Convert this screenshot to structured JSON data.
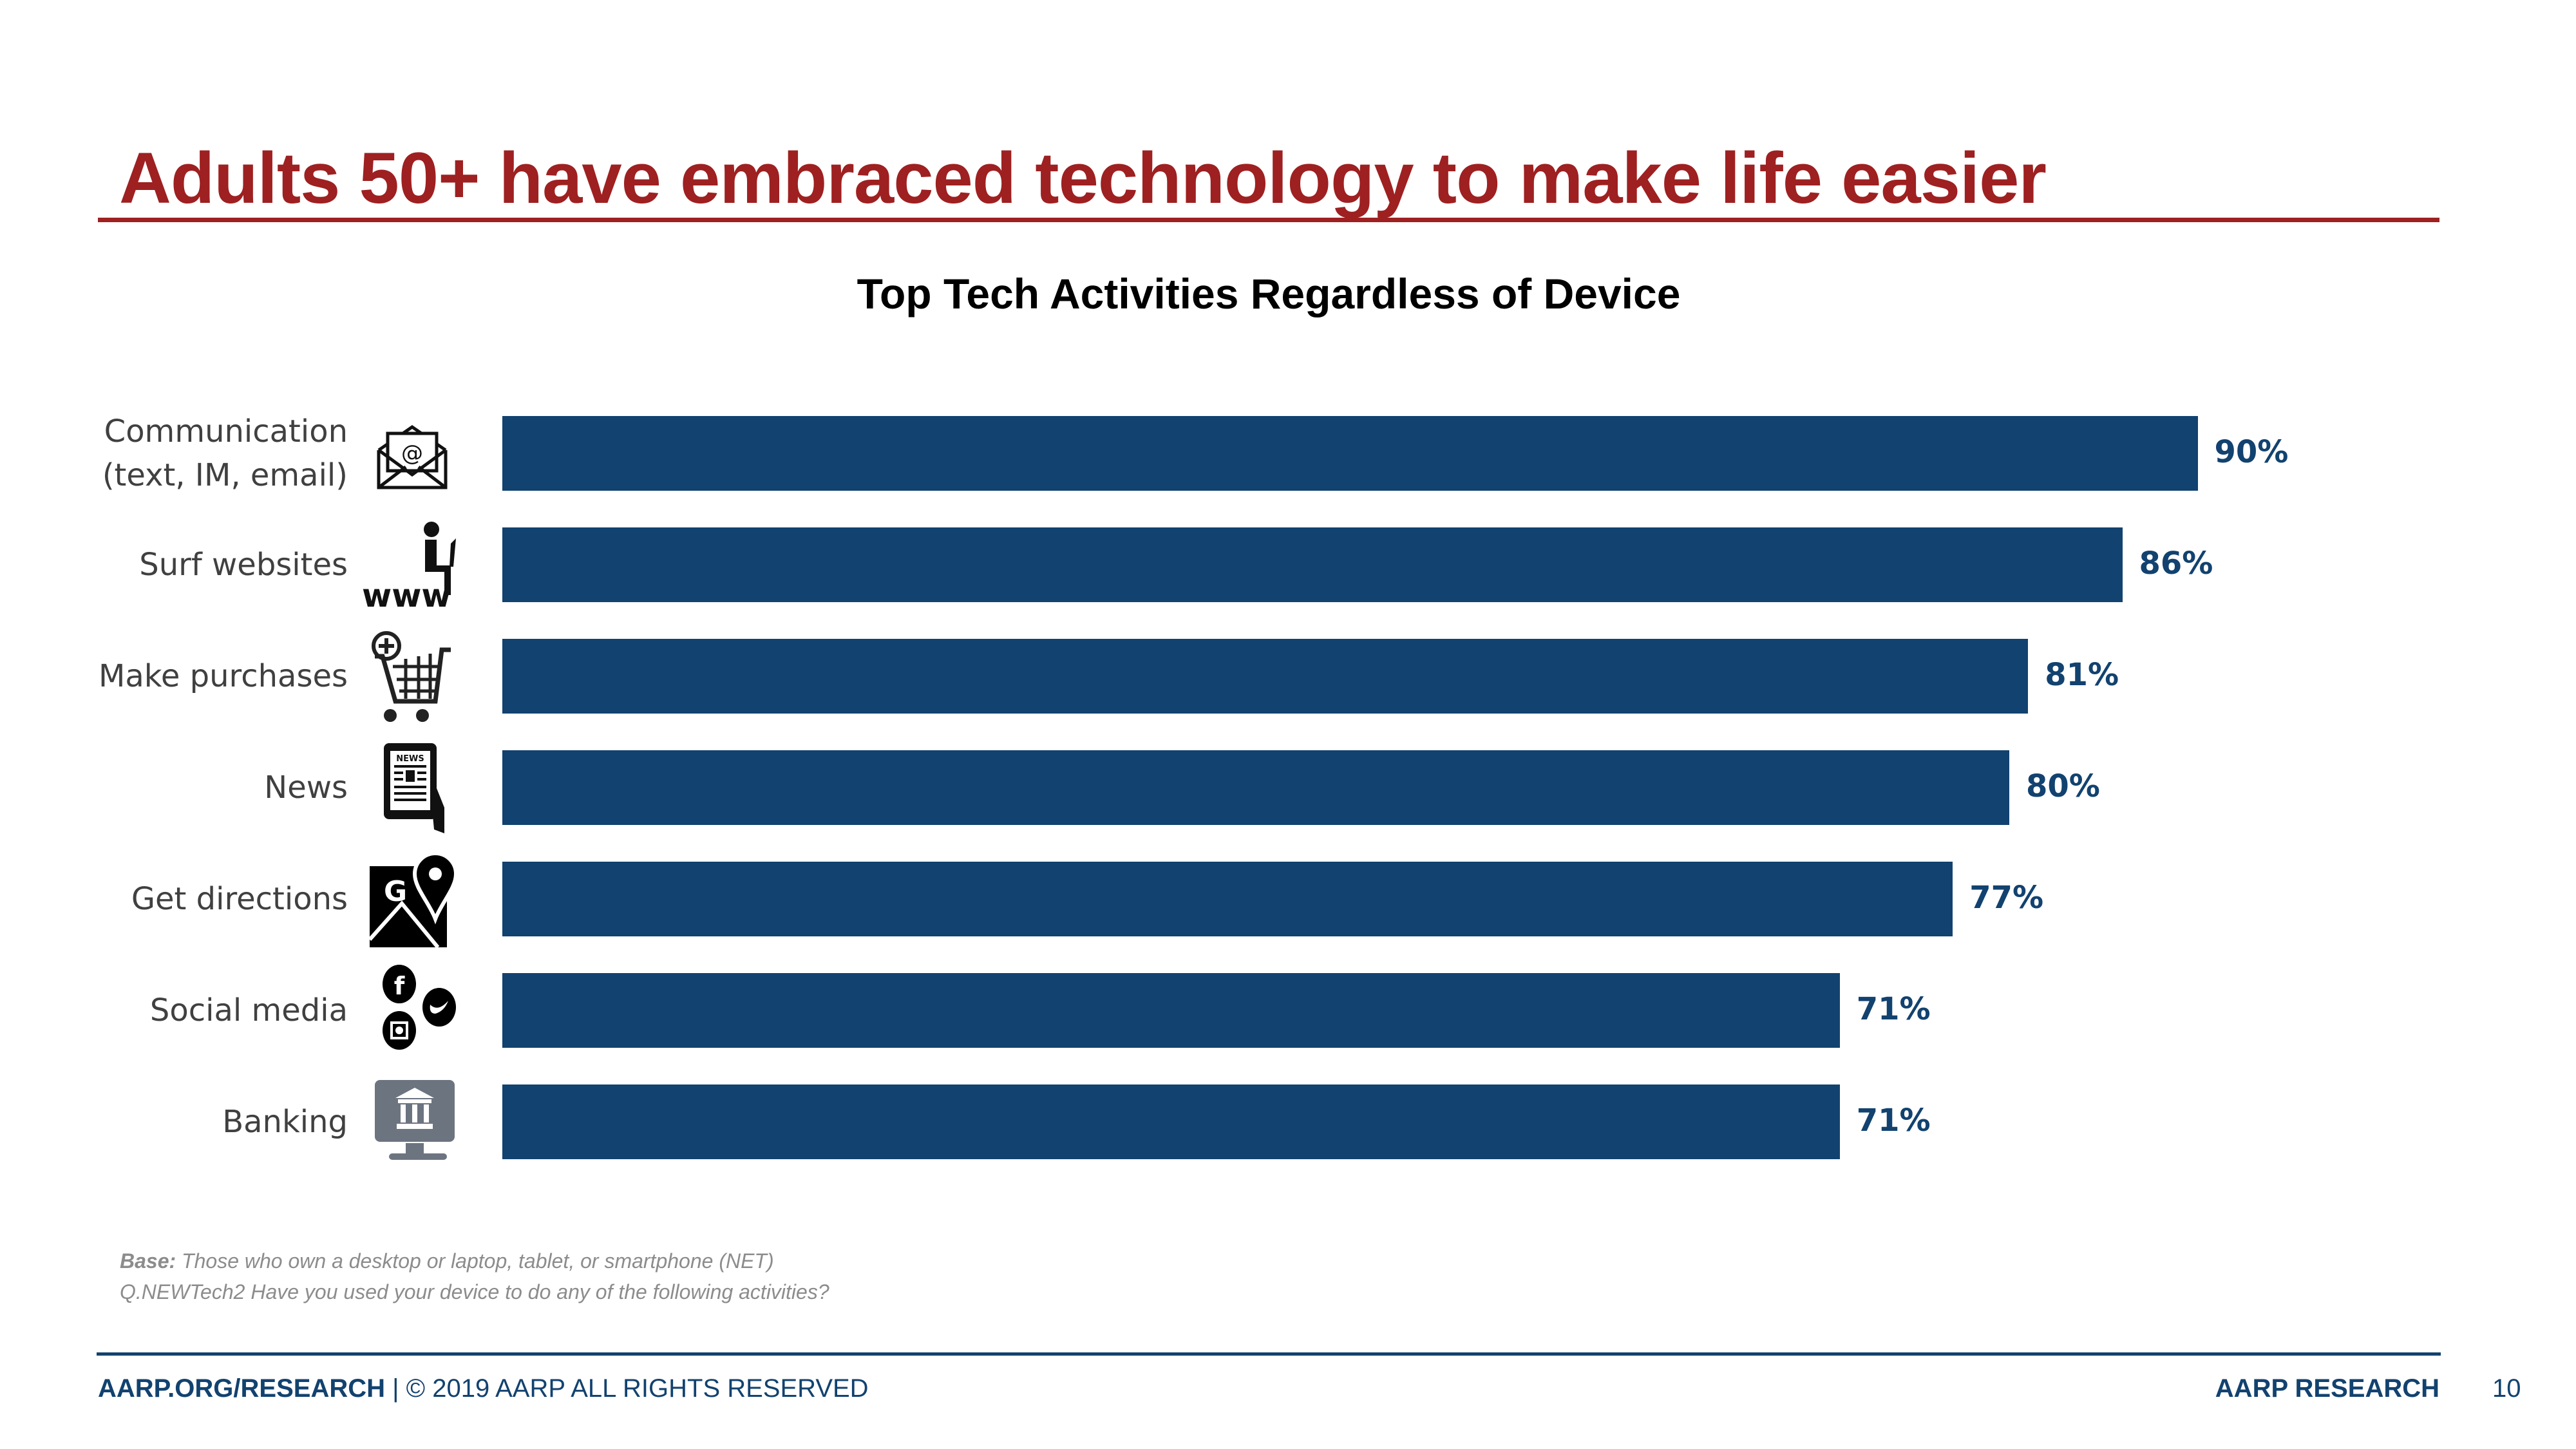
{
  "slide": {
    "title": "Adults 50+ have embraced technology to make life easier",
    "title_color": "#9E2021",
    "notes": {
      "base_label": "Base:",
      "base_text": " Those who own a desktop or laptop, tablet, or smartphone (NET)",
      "question": "Q.NEWTech2 Have you used your device to do any of the following activities?"
    },
    "footer": {
      "site": "AARP.ORG/RESEARCH",
      "copyright": " | © 2019 AARP ALL RIGHTS RESERVED",
      "brand": "AARP RESEARCH",
      "page_number": "10"
    },
    "accent_color": "#12426F"
  },
  "chart_data": {
    "type": "bar",
    "orientation": "horizontal",
    "title": "Top Tech Activities Regardless of Device",
    "xlabel": "",
    "ylabel": "",
    "xlim": [
      0,
      100
    ],
    "grid": false,
    "legend": "none",
    "bar_color": "#12426F",
    "categories": [
      {
        "line1": "Communication",
        "line2": "(text, IM, email)",
        "icon": "envelope-at-icon"
      },
      {
        "line1": "Surf websites",
        "line2": "",
        "icon": "person-laptop-www-icon"
      },
      {
        "line1": "Make purchases",
        "line2": "",
        "icon": "shopping-cart-add-icon"
      },
      {
        "line1": "News",
        "line2": "",
        "icon": "tablet-news-icon"
      },
      {
        "line1": "Get directions",
        "line2": "",
        "icon": "map-pin-icon"
      },
      {
        "line1": "Social media",
        "line2": "",
        "icon": "social-media-icon"
      },
      {
        "line1": "Banking",
        "line2": "",
        "icon": "bank-monitor-icon"
      }
    ],
    "values": [
      90,
      86,
      81,
      80,
      77,
      71,
      71
    ],
    "value_labels": [
      "90%",
      "86%",
      "81%",
      "80%",
      "77%",
      "71%",
      "71%"
    ]
  }
}
